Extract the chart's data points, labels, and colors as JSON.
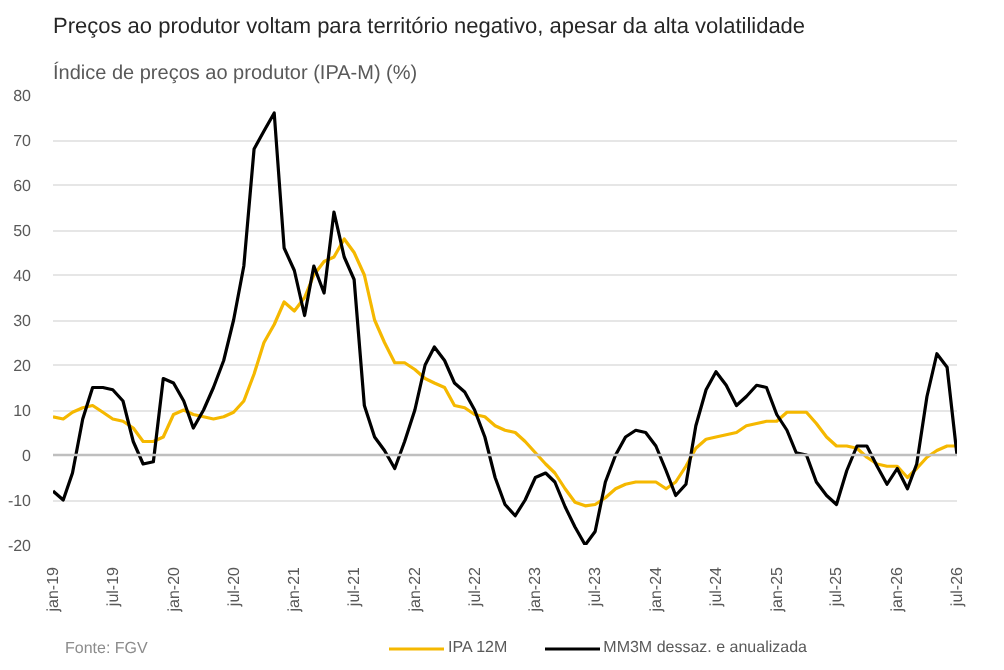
{
  "chart_data": {
    "type": "line",
    "title": "Preços ao produtor voltam para território negativo, apesar da alta volatilidade",
    "subtitle": "Índice de preços ao produtor (IPA-M) (%)",
    "annotations": [
      "Fonte: FGV"
    ],
    "x": [
      "2019-01",
      "2019-02",
      "2019-03",
      "2019-04",
      "2019-05",
      "2019-06",
      "2019-07",
      "2019-08",
      "2019-09",
      "2019-10",
      "2019-11",
      "2019-12",
      "2020-01",
      "2020-02",
      "2020-03",
      "2020-04",
      "2020-05",
      "2020-06",
      "2020-07",
      "2020-08",
      "2020-09",
      "2020-10",
      "2020-11",
      "2020-12",
      "2021-01",
      "2021-02",
      "2021-03",
      "2021-04",
      "2021-05",
      "2021-06",
      "2021-07",
      "2021-08",
      "2021-09",
      "2021-10",
      "2021-11",
      "2021-12",
      "2022-01",
      "2022-02",
      "2022-03",
      "2022-04",
      "2022-05",
      "2022-06",
      "2022-07",
      "2022-08",
      "2022-09",
      "2022-10",
      "2022-11",
      "2022-12",
      "2023-01",
      "2023-02",
      "2023-03",
      "2023-04",
      "2023-05",
      "2023-06",
      "2023-07",
      "2023-08",
      "2023-09",
      "2023-10",
      "2023-11",
      "2023-12",
      "2024-01",
      "2024-02",
      "2024-03",
      "2024-04",
      "2024-05",
      "2024-06",
      "2024-07",
      "2024-08",
      "2024-09",
      "2024-10",
      "2024-11",
      "2024-12",
      "2025-01",
      "2025-02",
      "2025-03",
      "2025-04",
      "2025-05",
      "2025-06",
      "2025-07",
      "2025-08",
      "2025-09",
      "2025-10",
      "2025-11",
      "2025-12",
      "2026-01",
      "2026-02",
      "2026-03",
      "2026-04",
      "2026-05",
      "2026-06",
      "2026-07"
    ],
    "series": [
      {
        "name": "IPA 12M",
        "color": "#f5b800",
        "values": [
          8.5,
          8,
          9.5,
          10.5,
          11,
          9.5,
          8,
          7.5,
          6,
          3,
          3,
          4,
          9,
          10,
          9,
          8.5,
          8,
          8.5,
          9.5,
          12,
          18,
          25,
          29,
          34,
          32,
          35,
          40,
          43,
          44,
          48,
          45,
          40,
          30,
          25,
          20.5,
          20.5,
          19,
          17,
          16,
          15,
          11,
          10.5,
          9,
          8.5,
          6.5,
          5.5,
          5,
          3,
          0.5,
          -2,
          -4,
          -7.5,
          -10.5,
          -11.3,
          -11,
          -9.5,
          -7.5,
          -6.5,
          -6,
          -6,
          -6,
          -7.5,
          -6,
          -2.5,
          1.5,
          3.5,
          4,
          4.5,
          5,
          6.5,
          7,
          7.5,
          7.5,
          9.5,
          9.5,
          9.5,
          7,
          4,
          2,
          2,
          1.5,
          -0.5,
          -2,
          -2.5,
          -2.5,
          -5,
          -3,
          -0.5,
          1,
          2,
          2
        ]
      },
      {
        "name": "MM3M dessaz. e anualizada",
        "color": "#000000",
        "values": [
          -8,
          -10,
          -4,
          8,
          15,
          15,
          14.5,
          12,
          3,
          -2,
          -1.5,
          17,
          16,
          12,
          6,
          10,
          15,
          21,
          30,
          42,
          68,
          72,
          76,
          46,
          41,
          31,
          42,
          36,
          54,
          44,
          39,
          11,
          4,
          1,
          -3,
          3,
          10,
          20,
          24,
          21,
          16,
          14,
          10,
          4,
          -5,
          -11,
          -13.5,
          -10,
          -5,
          -4,
          -6,
          -11.5,
          -16,
          -20,
          -17,
          -6,
          0,
          4,
          5.5,
          5,
          2,
          -3.5,
          -9,
          -6.5,
          6.5,
          14.5,
          18.5,
          15.5,
          11,
          13,
          15.5,
          15,
          9,
          5.5,
          0.5,
          0,
          -6,
          -9,
          -11,
          -3.5,
          2,
          2,
          -2.5,
          -6.5,
          -3,
          -7.5,
          -2,
          13,
          22.5,
          19.5,
          0
        ]
      }
    ],
    "xlim": [
      "2019-01",
      "2026-07"
    ],
    "xticks": [
      {
        "value": "2019-01",
        "label": "jan-19"
      },
      {
        "value": "2019-07",
        "label": "jul-19"
      },
      {
        "value": "2020-01",
        "label": "jan-20"
      },
      {
        "value": "2020-07",
        "label": "jul-20"
      },
      {
        "value": "2021-01",
        "label": "jan-21"
      },
      {
        "value": "2021-07",
        "label": "jul-21"
      },
      {
        "value": "2022-01",
        "label": "jan-22"
      },
      {
        "value": "2022-07",
        "label": "jul-22"
      },
      {
        "value": "2023-01",
        "label": "jan-23"
      },
      {
        "value": "2023-07",
        "label": "jul-23"
      },
      {
        "value": "2024-01",
        "label": "jan-24"
      },
      {
        "value": "2024-07",
        "label": "jul-24"
      },
      {
        "value": "2025-01",
        "label": "jan-25"
      },
      {
        "value": "2025-07",
        "label": "jul-25"
      },
      {
        "value": "2026-01",
        "label": "jan-26"
      },
      {
        "value": "2026-07",
        "label": "jul-26"
      }
    ],
    "ylim": [
      -20,
      80
    ],
    "yticks": [
      -20,
      -10,
      0,
      10,
      20,
      30,
      40,
      50,
      60,
      70,
      80
    ],
    "ref_lines": [
      {
        "axis": "y",
        "value": 0,
        "label": null,
        "color": "#bfbfbf"
      }
    ],
    "grid": "y",
    "legend": "bottom",
    "marker": "none",
    "line_style": "solid"
  }
}
